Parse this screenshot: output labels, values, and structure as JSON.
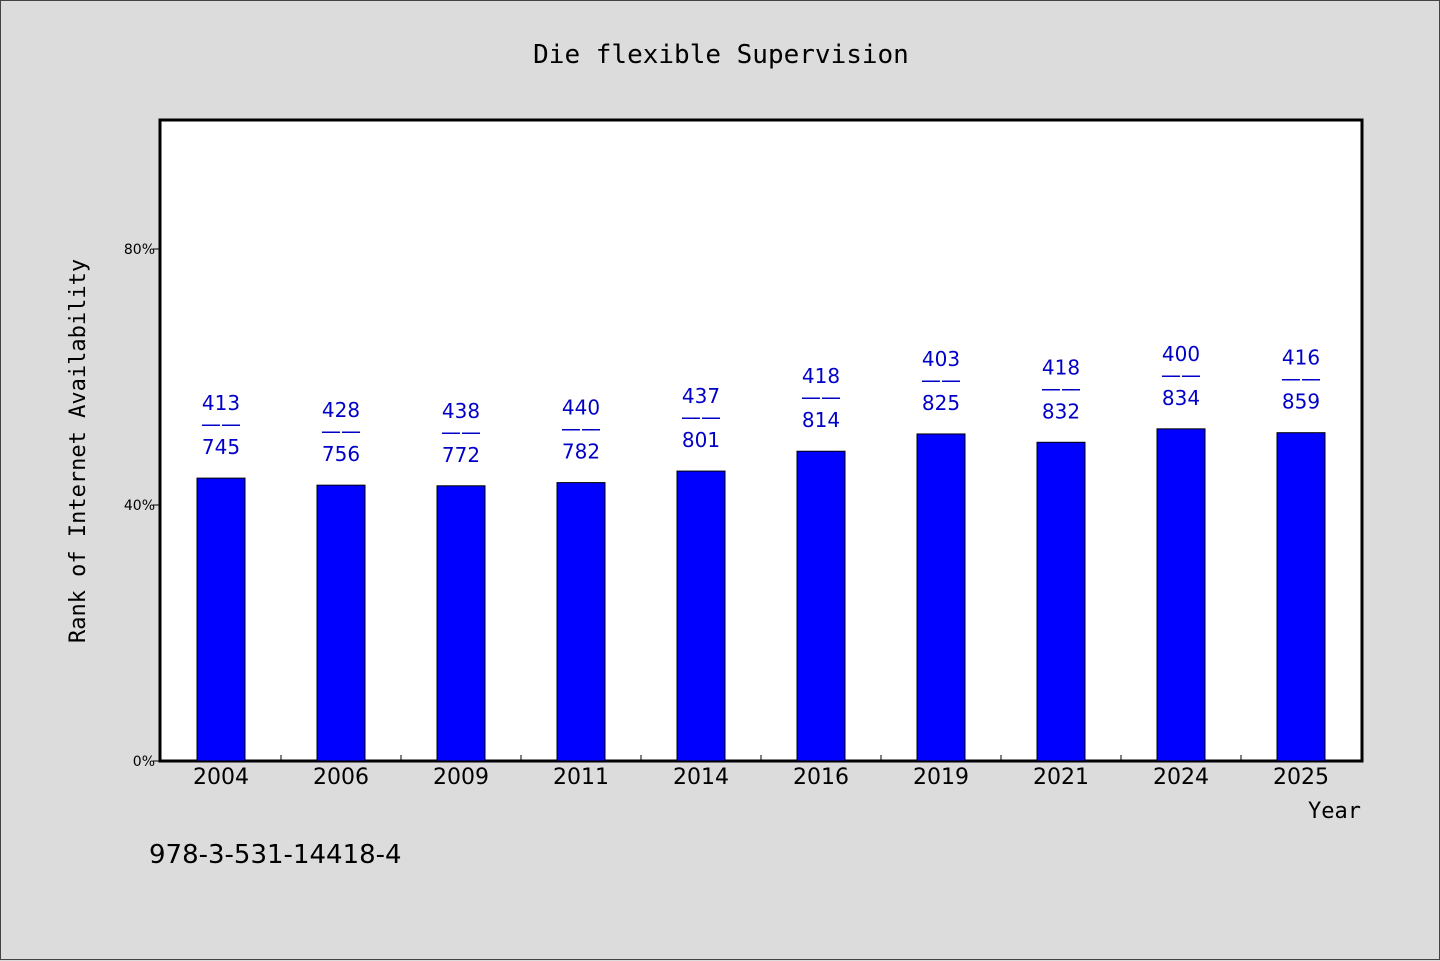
{
  "chart_data": {
    "type": "bar",
    "title": "Die flexible Supervision",
    "xlabel": "Year",
    "ylabel": "Rank of Internet Availability",
    "categories": [
      "2004",
      "2006",
      "2009",
      "2011",
      "2014",
      "2016",
      "2019",
      "2021",
      "2024",
      "2025"
    ],
    "values": [
      44.2,
      43.1,
      43.0,
      43.5,
      45.3,
      48.4,
      51.1,
      49.8,
      51.9,
      51.3
    ],
    "data_labels": [
      {
        "top": "413",
        "sep": "——",
        "bottom": "745"
      },
      {
        "top": "428",
        "sep": "——",
        "bottom": "756"
      },
      {
        "top": "438",
        "sep": "——",
        "bottom": "772"
      },
      {
        "top": "440",
        "sep": "——",
        "bottom": "782"
      },
      {
        "top": "437",
        "sep": "——",
        "bottom": "801"
      },
      {
        "top": "418",
        "sep": "——",
        "bottom": "814"
      },
      {
        "top": "403",
        "sep": "——",
        "bottom": "825"
      },
      {
        "top": "418",
        "sep": "——",
        "bottom": "832"
      },
      {
        "top": "400",
        "sep": "——",
        "bottom": "834"
      },
      {
        "top": "416",
        "sep": "——",
        "bottom": "859"
      }
    ],
    "yticks": [
      0,
      40,
      80
    ],
    "ytick_labels": [
      "0%",
      "40%",
      "80%"
    ],
    "ylim": [
      0,
      100
    ],
    "grid": false,
    "bar_color": "#0000ff",
    "label_color": "#0000c8"
  },
  "footer_text": "978-3-531-14418-4"
}
